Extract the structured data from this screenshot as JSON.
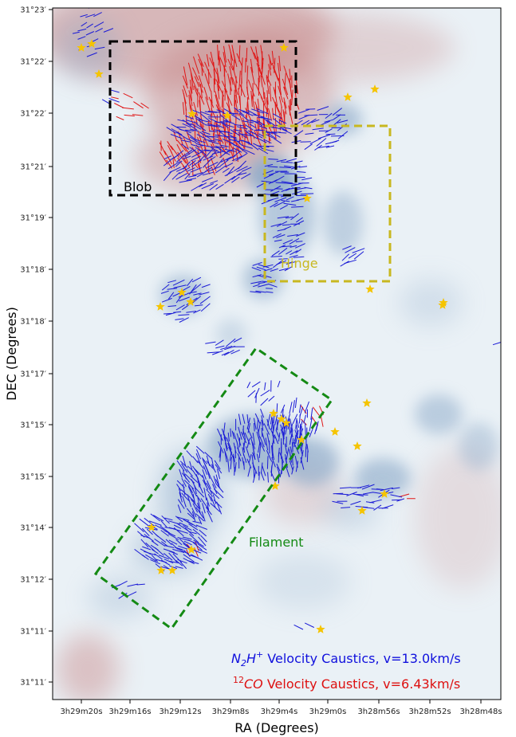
{
  "chart_data": {
    "type": "scatter",
    "xlabel": "RA (Degrees)",
    "ylabel": "DEC (Degrees)",
    "x_tick_labels": [
      "3h29m20s",
      "3h29m16s",
      "3h29m12s",
      "3h29m8s",
      "3h29m4s",
      "3h29m0s",
      "3h28m56s",
      "3h28m52s",
      "3h28m48s"
    ],
    "y_tick_labels": [
      "31°23′",
      "31°22′",
      "31°22′",
      "31°21′",
      "31°19′",
      "31°18′",
      "31°18′",
      "31°17′",
      "31°15′",
      "31°15′",
      "31°14′",
      "31°12′",
      "31°11′",
      "31°11′"
    ],
    "xlim": [
      "3h29m22s",
      "3h28m47s"
    ],
    "ylim": [
      "31°10′",
      "31°23′"
    ],
    "grid": false,
    "regions": [
      {
        "name": "Blob",
        "color": "#000000"
      },
      {
        "name": "Hinge",
        "color": "#c8b820"
      },
      {
        "name": "Filament",
        "color": "#148a14"
      }
    ],
    "legend": {
      "placement": "bottom-right",
      "entries": [
        {
          "prefix": "N",
          "sub": "2",
          "mid": "H",
          "sup": "+",
          "suffix": " Velocity Caustics, v=13.0km/s",
          "color": "#1010dd"
        },
        {
          "presup": "12",
          "prefix": "CO",
          "suffix": " Velocity Caustics, v=6.43km/s",
          "color": "#dd1010"
        }
      ]
    },
    "colors": {
      "n2h_vectors": "#1a1ad6",
      "co_vectors": "#e01616",
      "stars": "#f5c400",
      "blue_map": "#8aa8c8",
      "red_map": "#c88888"
    }
  }
}
